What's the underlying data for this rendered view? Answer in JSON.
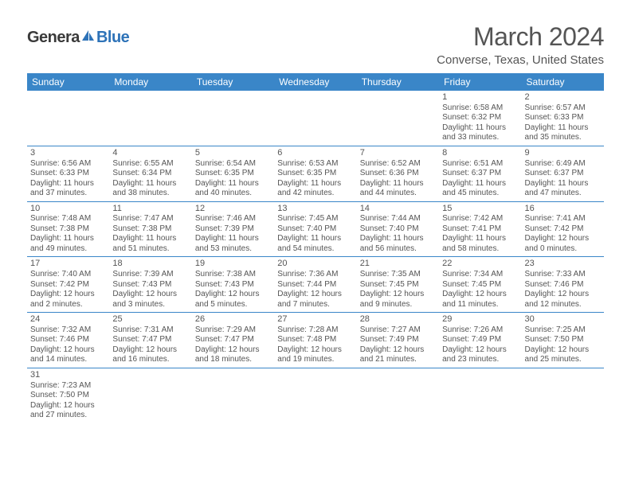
{
  "logo": {
    "part1": "Genera",
    "part2": "Blue"
  },
  "title": "March 2024",
  "location": "Converse, Texas, United States",
  "weekdays": [
    "Sunday",
    "Monday",
    "Tuesday",
    "Wednesday",
    "Thursday",
    "Friday",
    "Saturday"
  ],
  "colors": {
    "header_bg": "#3a86c8",
    "border": "#3a86c8",
    "text": "#555555",
    "logo_blue": "#2e73b8"
  },
  "weeks": [
    [
      {},
      {},
      {},
      {},
      {},
      {
        "n": "1",
        "sr": "Sunrise: 6:58 AM",
        "ss": "Sunset: 6:32 PM",
        "d1": "Daylight: 11 hours",
        "d2": "and 33 minutes."
      },
      {
        "n": "2",
        "sr": "Sunrise: 6:57 AM",
        "ss": "Sunset: 6:33 PM",
        "d1": "Daylight: 11 hours",
        "d2": "and 35 minutes."
      }
    ],
    [
      {
        "n": "3",
        "sr": "Sunrise: 6:56 AM",
        "ss": "Sunset: 6:33 PM",
        "d1": "Daylight: 11 hours",
        "d2": "and 37 minutes."
      },
      {
        "n": "4",
        "sr": "Sunrise: 6:55 AM",
        "ss": "Sunset: 6:34 PM",
        "d1": "Daylight: 11 hours",
        "d2": "and 38 minutes."
      },
      {
        "n": "5",
        "sr": "Sunrise: 6:54 AM",
        "ss": "Sunset: 6:35 PM",
        "d1": "Daylight: 11 hours",
        "d2": "and 40 minutes."
      },
      {
        "n": "6",
        "sr": "Sunrise: 6:53 AM",
        "ss": "Sunset: 6:35 PM",
        "d1": "Daylight: 11 hours",
        "d2": "and 42 minutes."
      },
      {
        "n": "7",
        "sr": "Sunrise: 6:52 AM",
        "ss": "Sunset: 6:36 PM",
        "d1": "Daylight: 11 hours",
        "d2": "and 44 minutes."
      },
      {
        "n": "8",
        "sr": "Sunrise: 6:51 AM",
        "ss": "Sunset: 6:37 PM",
        "d1": "Daylight: 11 hours",
        "d2": "and 45 minutes."
      },
      {
        "n": "9",
        "sr": "Sunrise: 6:49 AM",
        "ss": "Sunset: 6:37 PM",
        "d1": "Daylight: 11 hours",
        "d2": "and 47 minutes."
      }
    ],
    [
      {
        "n": "10",
        "sr": "Sunrise: 7:48 AM",
        "ss": "Sunset: 7:38 PM",
        "d1": "Daylight: 11 hours",
        "d2": "and 49 minutes."
      },
      {
        "n": "11",
        "sr": "Sunrise: 7:47 AM",
        "ss": "Sunset: 7:38 PM",
        "d1": "Daylight: 11 hours",
        "d2": "and 51 minutes."
      },
      {
        "n": "12",
        "sr": "Sunrise: 7:46 AM",
        "ss": "Sunset: 7:39 PM",
        "d1": "Daylight: 11 hours",
        "d2": "and 53 minutes."
      },
      {
        "n": "13",
        "sr": "Sunrise: 7:45 AM",
        "ss": "Sunset: 7:40 PM",
        "d1": "Daylight: 11 hours",
        "d2": "and 54 minutes."
      },
      {
        "n": "14",
        "sr": "Sunrise: 7:44 AM",
        "ss": "Sunset: 7:40 PM",
        "d1": "Daylight: 11 hours",
        "d2": "and 56 minutes."
      },
      {
        "n": "15",
        "sr": "Sunrise: 7:42 AM",
        "ss": "Sunset: 7:41 PM",
        "d1": "Daylight: 11 hours",
        "d2": "and 58 minutes."
      },
      {
        "n": "16",
        "sr": "Sunrise: 7:41 AM",
        "ss": "Sunset: 7:42 PM",
        "d1": "Daylight: 12 hours",
        "d2": "and 0 minutes."
      }
    ],
    [
      {
        "n": "17",
        "sr": "Sunrise: 7:40 AM",
        "ss": "Sunset: 7:42 PM",
        "d1": "Daylight: 12 hours",
        "d2": "and 2 minutes."
      },
      {
        "n": "18",
        "sr": "Sunrise: 7:39 AM",
        "ss": "Sunset: 7:43 PM",
        "d1": "Daylight: 12 hours",
        "d2": "and 3 minutes."
      },
      {
        "n": "19",
        "sr": "Sunrise: 7:38 AM",
        "ss": "Sunset: 7:43 PM",
        "d1": "Daylight: 12 hours",
        "d2": "and 5 minutes."
      },
      {
        "n": "20",
        "sr": "Sunrise: 7:36 AM",
        "ss": "Sunset: 7:44 PM",
        "d1": "Daylight: 12 hours",
        "d2": "and 7 minutes."
      },
      {
        "n": "21",
        "sr": "Sunrise: 7:35 AM",
        "ss": "Sunset: 7:45 PM",
        "d1": "Daylight: 12 hours",
        "d2": "and 9 minutes."
      },
      {
        "n": "22",
        "sr": "Sunrise: 7:34 AM",
        "ss": "Sunset: 7:45 PM",
        "d1": "Daylight: 12 hours",
        "d2": "and 11 minutes."
      },
      {
        "n": "23",
        "sr": "Sunrise: 7:33 AM",
        "ss": "Sunset: 7:46 PM",
        "d1": "Daylight: 12 hours",
        "d2": "and 12 minutes."
      }
    ],
    [
      {
        "n": "24",
        "sr": "Sunrise: 7:32 AM",
        "ss": "Sunset: 7:46 PM",
        "d1": "Daylight: 12 hours",
        "d2": "and 14 minutes."
      },
      {
        "n": "25",
        "sr": "Sunrise: 7:31 AM",
        "ss": "Sunset: 7:47 PM",
        "d1": "Daylight: 12 hours",
        "d2": "and 16 minutes."
      },
      {
        "n": "26",
        "sr": "Sunrise: 7:29 AM",
        "ss": "Sunset: 7:47 PM",
        "d1": "Daylight: 12 hours",
        "d2": "and 18 minutes."
      },
      {
        "n": "27",
        "sr": "Sunrise: 7:28 AM",
        "ss": "Sunset: 7:48 PM",
        "d1": "Daylight: 12 hours",
        "d2": "and 19 minutes."
      },
      {
        "n": "28",
        "sr": "Sunrise: 7:27 AM",
        "ss": "Sunset: 7:49 PM",
        "d1": "Daylight: 12 hours",
        "d2": "and 21 minutes."
      },
      {
        "n": "29",
        "sr": "Sunrise: 7:26 AM",
        "ss": "Sunset: 7:49 PM",
        "d1": "Daylight: 12 hours",
        "d2": "and 23 minutes."
      },
      {
        "n": "30",
        "sr": "Sunrise: 7:25 AM",
        "ss": "Sunset: 7:50 PM",
        "d1": "Daylight: 12 hours",
        "d2": "and 25 minutes."
      }
    ],
    [
      {
        "n": "31",
        "sr": "Sunrise: 7:23 AM",
        "ss": "Sunset: 7:50 PM",
        "d1": "Daylight: 12 hours",
        "d2": "and 27 minutes."
      },
      {},
      {},
      {},
      {},
      {},
      {}
    ]
  ]
}
